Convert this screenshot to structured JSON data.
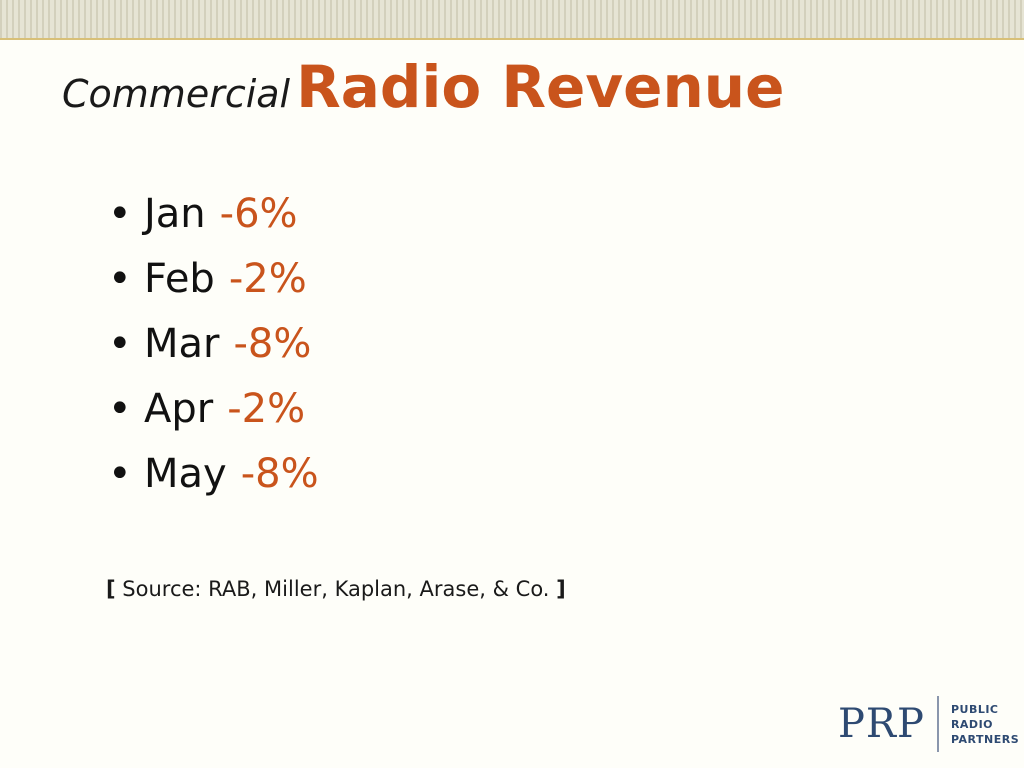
{
  "slide": {
    "title_prefix": "Commercial",
    "title_main": "Radio Revenue",
    "bullets": [
      {
        "month": "Jan",
        "value": "-6%"
      },
      {
        "month": "Feb",
        "value": "-2%"
      },
      {
        "month": "Mar",
        "value": "-8%"
      },
      {
        "month": "Apr",
        "value": "-2%"
      },
      {
        "month": "May",
        "value": "-8%"
      }
    ],
    "source": {
      "open_bracket": "[",
      "text": "Source: RAB, Miller, Kaplan, Arase, & Co.",
      "close_bracket": "]"
    }
  },
  "logo": {
    "mark": "PRP",
    "lines": [
      "PUBLIC",
      "RADIO",
      "PARTNERS"
    ]
  },
  "colors": {
    "accent": "#c9541c",
    "logo": "#2e4a72",
    "rule": "#d8c078"
  }
}
